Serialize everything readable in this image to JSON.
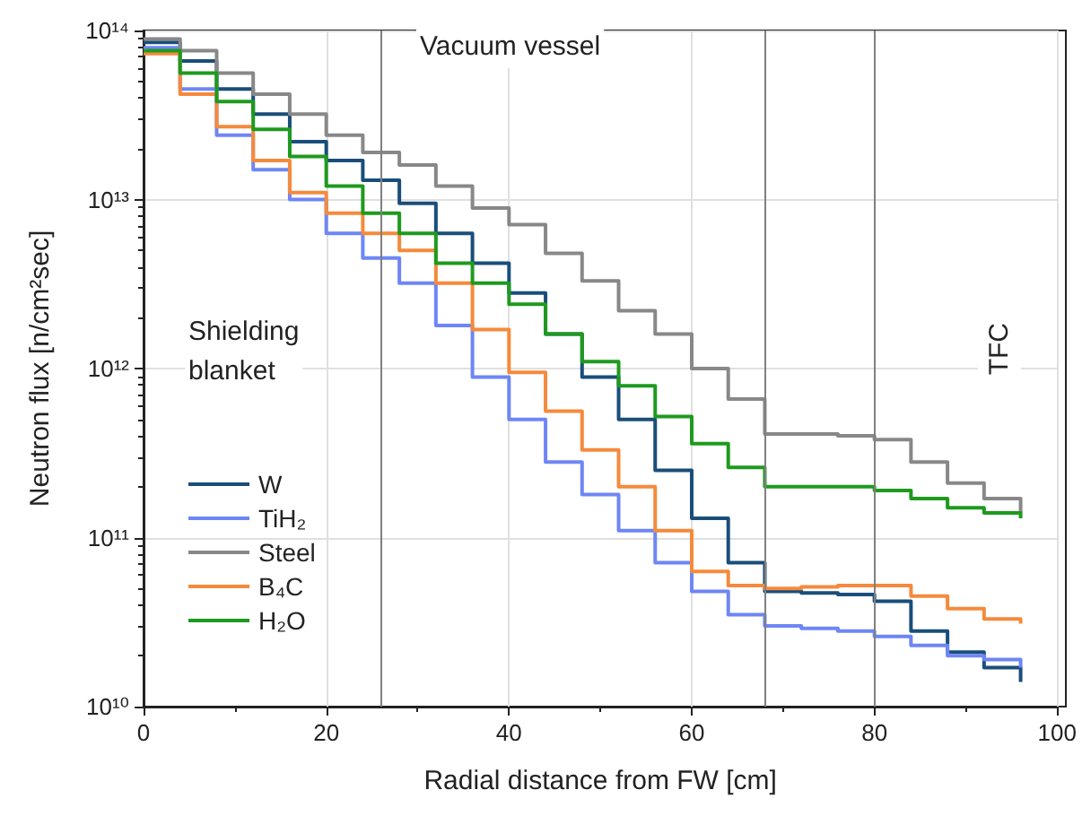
{
  "chart_data": {
    "type": "step",
    "xlabel": "Radial distance from FW [cm]",
    "ylabel": "Neutron flux [n/cm²sec]",
    "x": [
      0,
      4,
      8,
      12,
      16,
      20,
      24,
      28,
      32,
      36,
      40,
      44,
      48,
      52,
      56,
      60,
      64,
      68,
      72,
      76,
      80,
      84,
      88,
      92,
      96
    ],
    "series": [
      {
        "name": "W",
        "color": "#1a4e7a",
        "values": [
          85000000000000.0,
          66000000000000.0,
          45000000000000.0,
          32000000000000.0,
          22000000000000.0,
          17000000000000.0,
          13000000000000.0,
          9500000000000.0,
          6300000000000.0,
          4200000000000.0,
          2800000000000.0,
          1600000000000.0,
          890000000000.0,
          500000000000.0,
          250000000000.0,
          130000000000.0,
          71000000000.0,
          48000000000.0,
          47000000000.0,
          46000000000.0,
          42000000000.0,
          28000000000.0,
          21000000000.0,
          17000000000.0,
          14000000000.0
        ]
      },
      {
        "name": "TiH₂",
        "color": "#6e86f5",
        "values": [
          79000000000000.0,
          45000000000000.0,
          24000000000000.0,
          15000000000000.0,
          10000000000000.0,
          6300000000000.0,
          4500000000000.0,
          3200000000000.0,
          1800000000000.0,
          890000000000.0,
          500000000000.0,
          280000000000.0,
          180000000000.0,
          110000000000.0,
          71000000000.0,
          48000000000.0,
          35000000000.0,
          30000000000.0,
          29000000000.0,
          28000000000.0,
          26000000000.0,
          23000000000.0,
          20000000000.0,
          19000000000.0,
          17000000000.0
        ]
      },
      {
        "name": "Steel",
        "color": "#888888",
        "values": [
          89000000000000.0,
          76000000000000.0,
          56000000000000.0,
          42000000000000.0,
          32000000000000.0,
          24000000000000.0,
          19000000000000.0,
          16000000000000.0,
          12000000000000.0,
          8900000000000.0,
          7100000000000.0,
          4800000000000.0,
          3300000000000.0,
          2200000000000.0,
          1600000000000.0,
          1000000000000.0,
          660000000000.0,
          410000000000.0,
          410000000000.0,
          400000000000.0,
          380000000000.0,
          280000000000.0,
          210000000000.0,
          170000000000.0,
          140000000000.0
        ]
      },
      {
        "name": "B₄C",
        "color": "#f58a3c",
        "values": [
          73000000000000.0,
          42000000000000.0,
          27000000000000.0,
          17000000000000.0,
          11000000000000.0,
          8300000000000.0,
          6300000000000.0,
          5000000000000.0,
          3200000000000.0,
          1700000000000.0,
          950000000000.0,
          560000000000.0,
          330000000000.0,
          200000000000.0,
          110000000000.0,
          63000000000.0,
          52000000000.0,
          50000000000.0,
          51000000000.0,
          52000000000.0,
          52000000000.0,
          45000000000.0,
          38000000000.0,
          33000000000.0,
          31000000000.0
        ]
      },
      {
        "name": "H₂O",
        "color": "#1e9a1e",
        "values": [
          76000000000000.0,
          56000000000000.0,
          38000000000000.0,
          26000000000000.0,
          18000000000000.0,
          12000000000000.0,
          8300000000000.0,
          6300000000000.0,
          4200000000000.0,
          3200000000000.0,
          2400000000000.0,
          1600000000000.0,
          1100000000000.0,
          790000000000.0,
          520000000000.0,
          360000000000.0,
          260000000000.0,
          200000000000.0,
          200000000000.0,
          200000000000.0,
          190000000000.0,
          170000000000.0,
          150000000000.0,
          140000000000.0,
          130000000000.0
        ]
      }
    ],
    "xlim": [
      0,
      100
    ],
    "xticks": [
      0,
      20,
      40,
      60,
      80,
      100
    ],
    "ylim": [
      10000000000.0,
      100000000000000.0
    ],
    "yticks": [
      {
        "value": 10000000000.0,
        "label": "10¹⁰"
      },
      {
        "value": 100000000000.0,
        "label": "10¹¹"
      },
      {
        "value": 1000000000000.0,
        "label": "10¹²"
      },
      {
        "value": 10000000000000.0,
        "label": "10¹³"
      },
      {
        "value": 100000000000000.0,
        "label": "10¹⁴"
      }
    ],
    "log": "y",
    "grid": true,
    "legend": "bottom left",
    "marker": "none",
    "line_style": "solid",
    "ref_lines": [
      {
        "axis": "x",
        "value": 26,
        "color": "#808080"
      },
      {
        "axis": "x",
        "value": 68,
        "color": "#808080"
      },
      {
        "axis": "x",
        "value": 80,
        "color": "#808080"
      }
    ],
    "annotations": [
      "Vacuum vessel",
      "Shielding\nblanket",
      "TFC"
    ]
  }
}
